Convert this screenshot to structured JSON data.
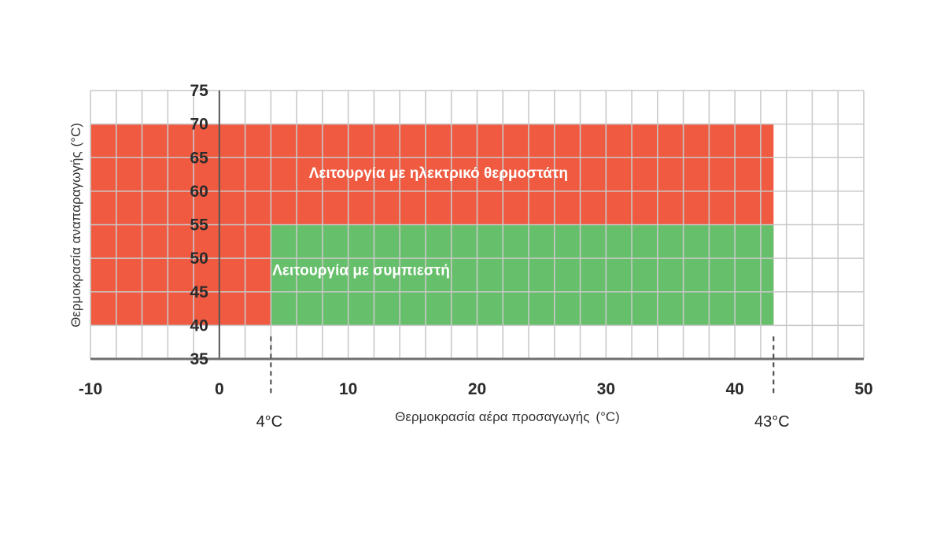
{
  "chart_data": {
    "type": "area",
    "title": "",
    "xlabel": "Θερμοκρασία αέρα προσαγωγής",
    "xlabel_unit": "(°C)",
    "ylabel": "Θερμοκρασία αναπαραγωγής",
    "ylabel_unit": "(°C)",
    "xlim": [
      -10,
      50
    ],
    "ylim": [
      35,
      75
    ],
    "x_ticks": [
      "-10",
      "0",
      "10",
      "20",
      "30",
      "40",
      "50"
    ],
    "y_ticks": [
      "75",
      "70",
      "65",
      "60",
      "55",
      "50",
      "45",
      "40",
      "35"
    ],
    "x_minor_step": 2,
    "y_minor_step": 5,
    "grid": true,
    "regions": [
      {
        "name": "Λειτουργία με ηλεκτρικό θερμοστάτη",
        "color": "#ef5a41",
        "x_range": [
          -10,
          43
        ],
        "y_range": [
          40,
          70
        ],
        "label_at": [
          17,
          62
        ]
      },
      {
        "name": "Λειτουργία με συμπιεστή",
        "color": "#66bf6a",
        "x_range": [
          4,
          43
        ],
        "y_range": [
          40,
          55
        ],
        "label_at": [
          11,
          47.5
        ]
      }
    ],
    "markers": [
      {
        "x": 4,
        "label": "4°C"
      },
      {
        "x": 43,
        "label": "43°C"
      }
    ]
  }
}
